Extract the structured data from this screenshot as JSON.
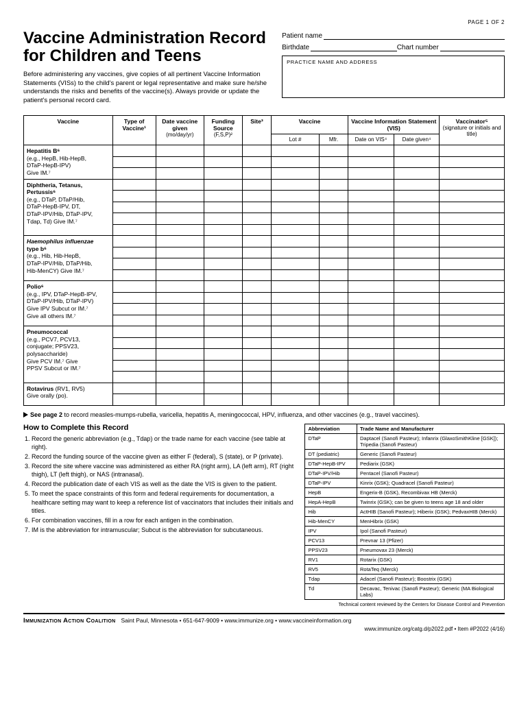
{
  "pageNum": "PAGE 1 OF 2",
  "title1": "Vaccine Administration Record",
  "title2": "for Children and Teens",
  "intro": "Before administering any vaccines, give copies of all pertinent Vaccine Information Statements (VISs) to the child's parent or legal representative and make sure he/she understands the risks and benefits of the vaccine(s). Always provide or update the patient's personal record card.",
  "fields": {
    "patient": "Patient name",
    "birthdate": "Birthdate",
    "chart": "Chart number",
    "practice": "PRACTICE NAME AND ADDRESS"
  },
  "th": {
    "vaccine": "Vaccine",
    "type": "Type of Vaccine¹",
    "date": "Date vaccine given",
    "dateSub": "(mo/day/yr)",
    "fund": "Funding Source",
    "fundSub": "(F,S,P)²",
    "site": "Site³",
    "vacc2": "Vaccine",
    "lot": "Lot #",
    "mfr": "Mfr.",
    "vis": "Vaccine Information Statement (VIS)",
    "dvis": "Date on VIS⁴",
    "dgiv": "Date given⁴",
    "sig": "Vaccinator⁵",
    "sigSub": "(signature or initials and title)"
  },
  "vaccineRows": [
    {
      "html": "<b>Hepatitis B⁶</b><br>(e.g., HepB, Hib-HepB,<br>DTaP-HepB-IPV)<br>Give IM.⁷",
      "rows": 3
    },
    {
      "html": "<b>Diphtheria, Tetanus,<br>Pertussis⁶</b><br>(e.g., DTaP, DTaP/Hib,<br>DTaP-HepB-IPV, DT,<br>DTaP-IPV/Hib, DTaP-IPV,<br>Tdap, Td) Give IM.⁷",
      "rows": 5
    },
    {
      "html": "<span class=\"it\">Haemophilus influenzae</span><br><b>type b⁶</b><br>(e.g., Hib, Hib-HepB,<br>DTaP-IPV/Hib, DTaP/Hib,<br>Hib-MenCY) Give IM.⁷",
      "rows": 4
    },
    {
      "html": "<b>Polio⁶</b><br>(e.g., IPV, DTaP-HepB-IPV,<br>DTaP-IPV/Hib, DTaP-IPV)<br>Give IPV Subcut or IM.⁷<br>Give all others IM.⁷",
      "rows": 4
    },
    {
      "html": "<b>Pneumococcal</b><br>(e.g., PCV7, PCV13,<br>conjugate; PPSV23,<br>polysaccharide)<br>Give PCV IM.⁷ Give<br>PPSV Subcut or IM.⁷",
      "rows": 5
    },
    {
      "html": "<b>Rotavirus</b> (RV1, RV5)<br>Give orally (po).",
      "rows": 2
    }
  ],
  "seePage": "See page 2 to record measles-mumps-rubella, varicella, hepatitis A, meningococcal, HPV, influenza, and other vaccines (e.g., travel vaccines).",
  "howtoTitle": "How to Complete this Record",
  "howto": [
    "Record the generic abbreviation (e.g., Tdap) or the trade name for each vaccine (see table at right).",
    "Record the funding source of the vaccine given as either F (federal), S (state), or P (private).",
    "Record the site where vaccine was administered as either RA (right arm), LA (left arm), RT (right thigh), LT (left thigh), or NAS (intranasal).",
    "Record the publication date of each VIS as well as the date the VIS is given to the patient.",
    "To meet the space constraints of this form and federal requirements for documentation, a healthcare setting may want to keep a reference list of vaccinators that includes their initials and titles.",
    "For combination vaccines, fill in a row for each antigen in the combination.",
    "IM is the abbreviation for intramuscular; Subcut is the abbreviation for subcutaneous."
  ],
  "abbrHead": {
    "a": "Abbreviation",
    "b": "Trade Name and Manufacturer"
  },
  "abbr": [
    [
      "DTaP",
      "Daptacel (Sanofi Pasteur); Infanrix (GlaxoSmithKline [GSK]); Tripedia (Sanofi Pasteur)"
    ],
    [
      "DT (pediatric)",
      "Generic (Sanofi Pasteur)"
    ],
    [
      "DTaP-HepB-IPV",
      "Pediarix (GSK)"
    ],
    [
      "DTaP-IPV/Hib",
      "Pentacel (Sanofi Pasteur)"
    ],
    [
      "DTaP-IPV",
      "Kinrix (GSK); Quadracel (Sanofi Pasteur)"
    ],
    [
      "HepB",
      "Engerix-B (GSK), Recombivax HB (Merck)"
    ],
    [
      "HepA-HepB",
      "Twinrix (GSK); can be given to teens age 18 and older"
    ],
    [
      "Hib",
      "ActHIB (Sanofi Pasteur); Hiberix (GSK); PedvaxHIB (Merck)"
    ],
    [
      "Hib-MenCY",
      "MenHibrix (GSK)"
    ],
    [
      "IPV",
      "Ipol (Sanofi Pasteur)"
    ],
    [
      "PCV13",
      "Prevnar 13 (Pfizer)"
    ],
    [
      "PPSV23",
      "Pneumovax 23 (Merck)"
    ],
    [
      "RV1",
      "Rotarix (GSK)"
    ],
    [
      "RV5",
      "RotaTeq (Merck)"
    ],
    [
      "Tdap",
      "Adacel (Sanofi Pasteur); Boostrix (GSK)"
    ],
    [
      "Td",
      "Decavac, Tenivac (Sanofi Pasteur); Generic (MA Biological Labs)"
    ]
  ],
  "techNote": "Technical content reviewed by the Centers for Disease Control and Prevention",
  "footer": {
    "org": "Immunization Action Coalition",
    "rest": "Saint Paul, Minnesota • 651-647-9009 • www.immunize.org • www.vaccineinformation.org",
    "sub": "www.immunize.org/catg.d/p2022.pdf • Item #P2022 (4/16)"
  }
}
